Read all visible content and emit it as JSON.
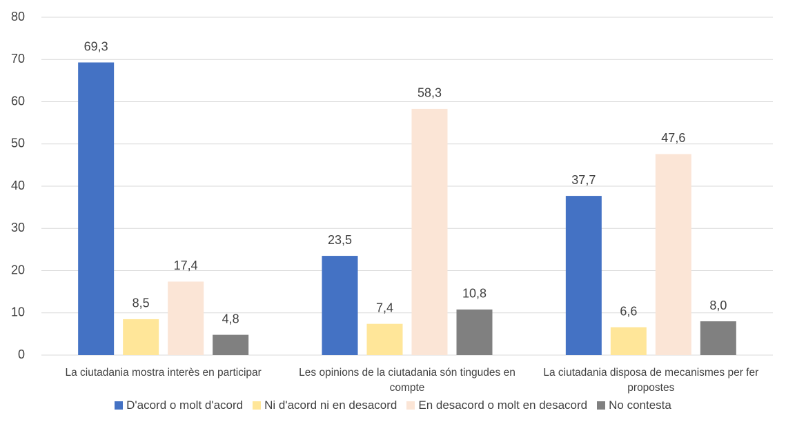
{
  "chart_data": {
    "type": "bar",
    "categories": [
      "La ciutadania mostra interès en participar",
      "Les opinions de la ciutadania són tingudes en compte",
      "La ciutadania disposa de mecanismes per fer propostes"
    ],
    "series": [
      {
        "name": "D'acord o molt d'acord",
        "color": "#4472c4",
        "values": [
          69.3,
          23.5,
          37.7
        ],
        "value_labels": [
          "69,3",
          "23,5",
          "37,7"
        ]
      },
      {
        "name": "Ni d'acord ni en desacord",
        "color": "#ffe699",
        "values": [
          8.5,
          7.4,
          6.6
        ],
        "value_labels": [
          "8,5",
          "7,4",
          "6,6"
        ]
      },
      {
        "name": "En desacord o molt en desacord",
        "color": "#fbe5d6",
        "values": [
          17.4,
          58.3,
          47.6
        ],
        "value_labels": [
          "17,4",
          "58,3",
          "47,6"
        ]
      },
      {
        "name": "No contesta",
        "color": "#808080",
        "values": [
          4.8,
          10.8,
          8.0
        ],
        "value_labels": [
          "4,8",
          "10,8",
          "8,0"
        ]
      }
    ],
    "ylim": [
      0,
      80
    ],
    "yticks": [
      0,
      10,
      20,
      30,
      40,
      50,
      60,
      70,
      80
    ],
    "grid": true,
    "legend": "bottom"
  }
}
